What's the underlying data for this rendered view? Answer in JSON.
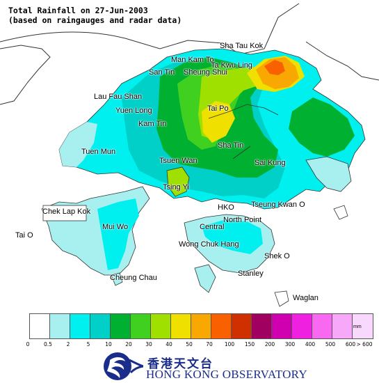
{
  "title": {
    "line1": "Total Rainfall on 27-Jun-2003",
    "line2": "(based on raingauges and radar data)"
  },
  "places": [
    {
      "id": "sha-tau-kok",
      "label": "Sha Tau Kok"
    },
    {
      "id": "man-kam-to",
      "label": "Man Kam To"
    },
    {
      "id": "ta-kwu-ling",
      "label": "Ta Kwu Ling"
    },
    {
      "id": "san-tin",
      "label": "San Tin"
    },
    {
      "id": "sheung-shui",
      "label": "Sheung Shui"
    },
    {
      "id": "lau-fau-shan",
      "label": "Lau Fau Shan"
    },
    {
      "id": "yuen-long",
      "label": "Yuen Long"
    },
    {
      "id": "tai-po",
      "label": "Tai Po"
    },
    {
      "id": "kam-tin",
      "label": "Kam Tin"
    },
    {
      "id": "tuen-mun",
      "label": "Tuen Mun"
    },
    {
      "id": "sha-tin",
      "label": "Sha Tin"
    },
    {
      "id": "sai-kung",
      "label": "Sai Kung"
    },
    {
      "id": "tsuen-wan",
      "label": "Tsuen Wan"
    },
    {
      "id": "tsing-yi",
      "label": "Tsing Yi"
    },
    {
      "id": "chek-lap-kok",
      "label": "Chek Lap Kok"
    },
    {
      "id": "hko",
      "label": "HKO"
    },
    {
      "id": "tseung-kwan-o",
      "label": "Tseung Kwan O"
    },
    {
      "id": "north-point",
      "label": "North Point"
    },
    {
      "id": "mui-wo",
      "label": "Mui Wo"
    },
    {
      "id": "central",
      "label": "Central"
    },
    {
      "id": "tai-o",
      "label": "Tai O"
    },
    {
      "id": "wong-chuk-hang",
      "label": "Wong Chuk Hang"
    },
    {
      "id": "shek-o",
      "label": "Shek O"
    },
    {
      "id": "cheung-chau",
      "label": "Cheung Chau"
    },
    {
      "id": "stanley",
      "label": "Stanley"
    },
    {
      "id": "waglan",
      "label": "Waglan"
    }
  ],
  "legend": {
    "unit": "mm",
    "colors": [
      "#ffffff",
      "#a8f0f0",
      "#00f0f0",
      "#00d0c8",
      "#00b030",
      "#40d020",
      "#a0e000",
      "#f0e000",
      "#f8a800",
      "#f86000",
      "#d03000",
      "#a00060",
      "#d000b0",
      "#f020e0",
      "#f868f0",
      "#f8a8f8",
      "#f8d8fc"
    ],
    "ticks": [
      "0",
      "0.5",
      "2",
      "5",
      "10",
      "20",
      "30",
      "40",
      "50",
      "70",
      "100",
      "150",
      "200",
      "300",
      "400",
      "500",
      "600",
      "> 600"
    ]
  },
  "organization": {
    "name_cn": "香港天文台",
    "name_en": "HONG KONG OBSERVATORY"
  }
}
